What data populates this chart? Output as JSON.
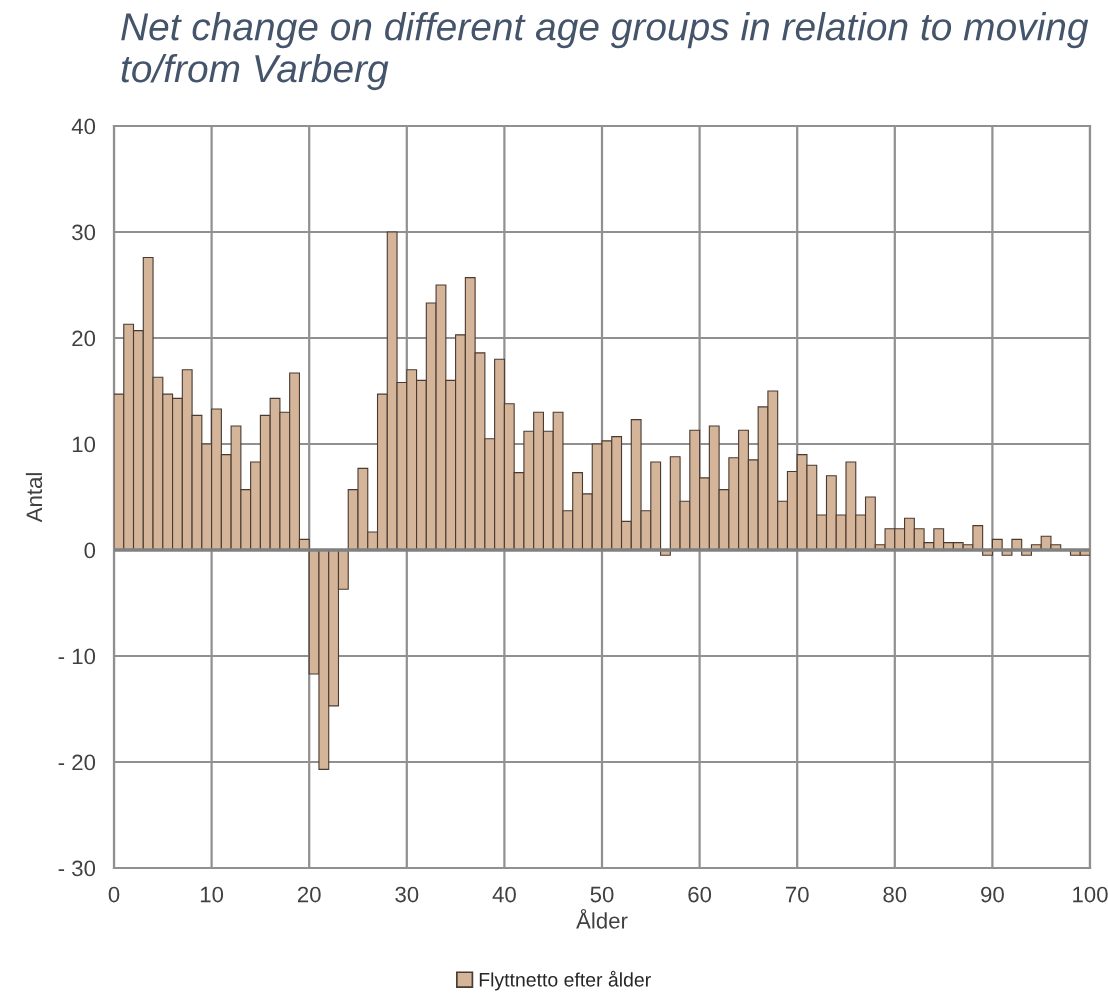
{
  "chart_data": {
    "type": "bar",
    "title": "Net change on different age groups in relation to moving to/from Varberg",
    "xlabel": "Ålder",
    "ylabel": "Antal",
    "x": [
      0,
      1,
      2,
      3,
      4,
      5,
      6,
      7,
      8,
      9,
      10,
      11,
      12,
      13,
      14,
      15,
      16,
      17,
      18,
      19,
      20,
      21,
      22,
      23,
      24,
      25,
      26,
      27,
      28,
      29,
      30,
      31,
      32,
      33,
      34,
      35,
      36,
      37,
      38,
      39,
      40,
      41,
      42,
      43,
      44,
      45,
      46,
      47,
      48,
      49,
      50,
      51,
      52,
      53,
      54,
      55,
      56,
      57,
      58,
      59,
      60,
      61,
      62,
      63,
      64,
      65,
      66,
      67,
      68,
      69,
      70,
      71,
      72,
      73,
      74,
      75,
      76,
      77,
      78,
      79,
      80,
      81,
      82,
      83,
      84,
      85,
      86,
      87,
      88,
      89,
      90,
      91,
      92,
      93,
      94,
      95,
      96,
      97,
      98,
      99
    ],
    "series": [
      {
        "name": "Flyttnetto efter ålder",
        "color": "#d4b59a",
        "values": [
          14.7,
          21.3,
          20.7,
          27.6,
          16.3,
          14.7,
          14.3,
          17,
          12.7,
          10,
          13.3,
          9,
          11.7,
          5.7,
          8.3,
          12.7,
          14.3,
          13,
          16.7,
          1,
          -11.7,
          -20.7,
          -14.7,
          -3.7,
          5.7,
          7.7,
          1.7,
          14.7,
          30,
          15.8,
          17,
          16,
          23.3,
          25,
          16,
          20.3,
          25.7,
          18.6,
          10.5,
          18,
          13.8,
          7.3,
          11.2,
          13,
          11.2,
          13,
          3.7,
          7.3,
          5.3,
          10,
          10.3,
          10.7,
          2.7,
          12.3,
          3.7,
          8.3,
          -0.5,
          8.8,
          4.6,
          11.3,
          6.8,
          11.7,
          5.7,
          8.7,
          11.3,
          8.5,
          13.5,
          15,
          4.6,
          7.4,
          9,
          8,
          3.3,
          7,
          3.3,
          8.3,
          3.3,
          5,
          0.5,
          2,
          2,
          3,
          2,
          0.7,
          2,
          0.7,
          0.7,
          0.5,
          2.3,
          -0.5,
          1,
          -0.5,
          1,
          -0.5,
          0.5,
          1.3,
          0.5,
          null,
          -0.5,
          -0.5
        ]
      }
    ],
    "xlim": [
      0,
      100
    ],
    "xticks": [
      0,
      10,
      20,
      30,
      40,
      50,
      60,
      70,
      80,
      90,
      100
    ],
    "ylim": [
      -30,
      40
    ],
    "yticks": [
      {
        "value": -30,
        "label": "- 30"
      },
      {
        "value": -20,
        "label": "- 20"
      },
      {
        "value": -10,
        "label": "- 10"
      },
      0,
      10,
      20,
      30,
      40
    ],
    "grid": true,
    "legend": "bottom"
  }
}
